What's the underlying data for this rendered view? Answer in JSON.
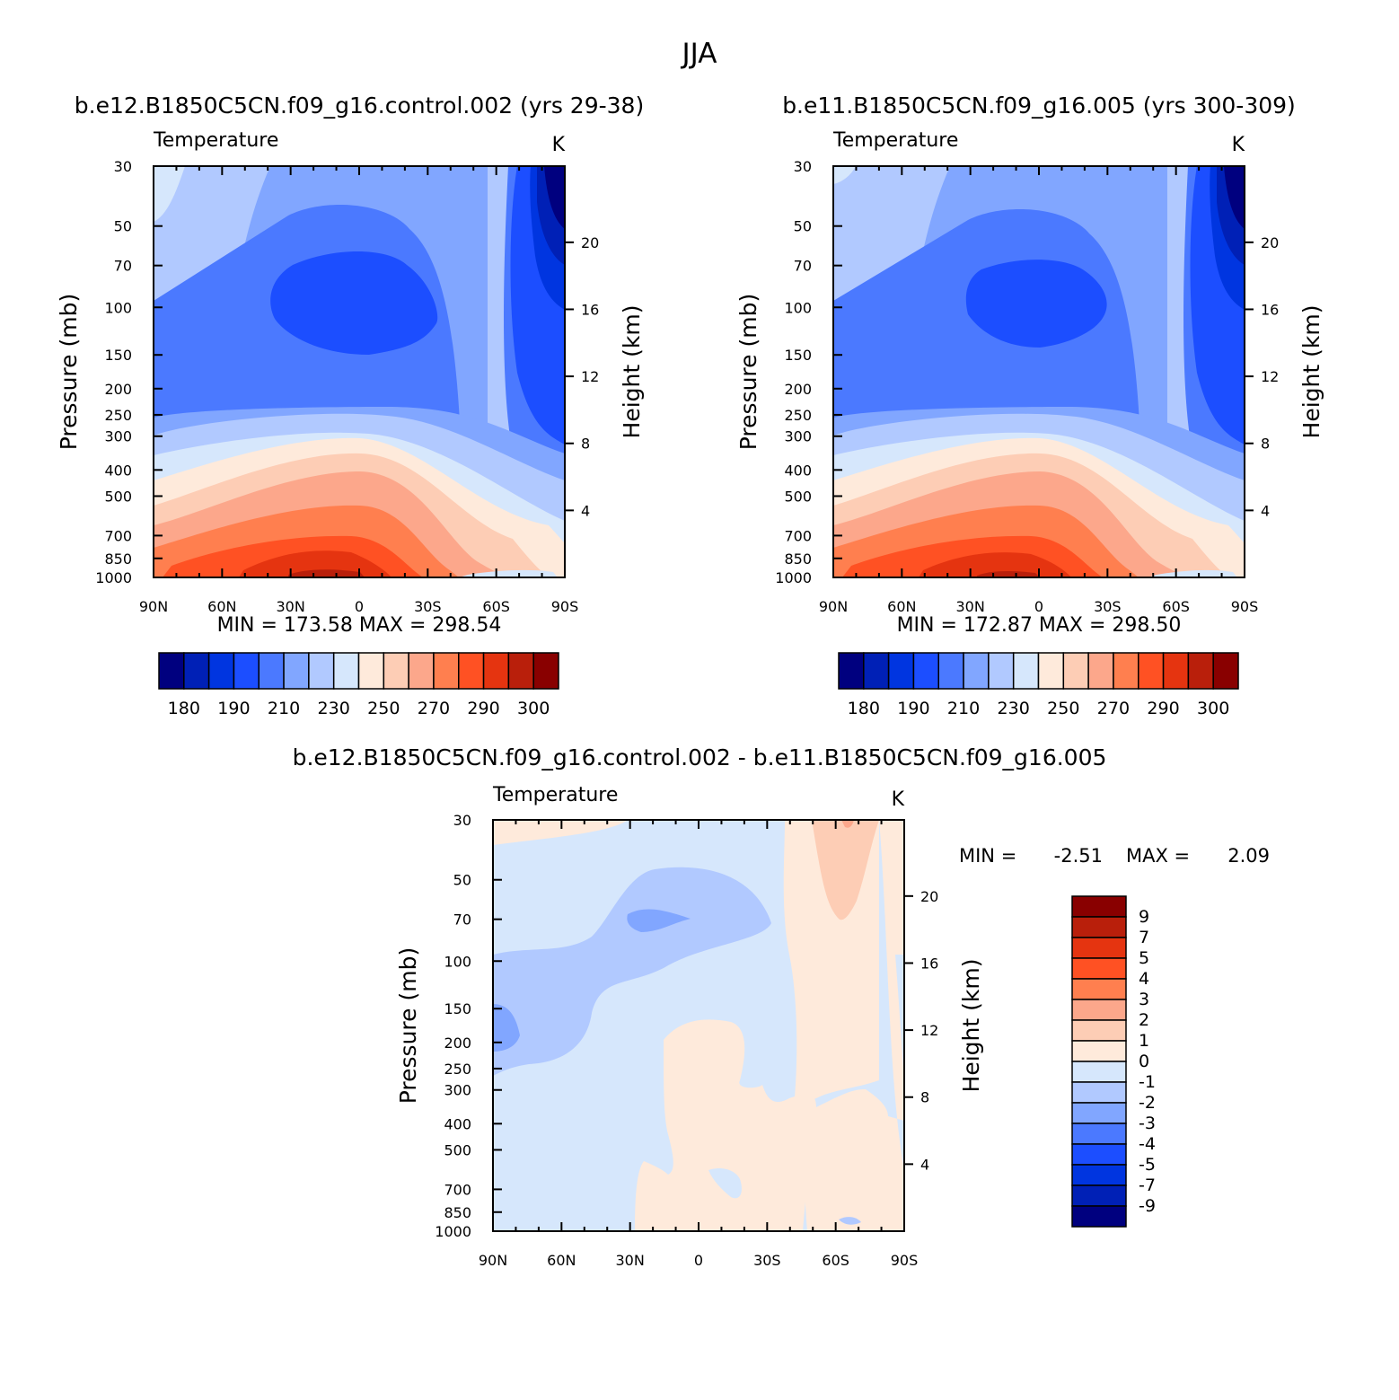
{
  "figure": {
    "title": "JJA",
    "panels": [
      {
        "id": "case1",
        "title": "b.e12.B1850C5CN.f09_g16.control.002 (yrs 29-38)",
        "field_label": "Temperature",
        "unit_label": "K",
        "min_text": "MIN =  173.58   MAX =  298.54"
      },
      {
        "id": "case2",
        "title": "b.e11.B1850C5CN.f09_g16.005 (yrs 300-309)",
        "field_label": "Temperature",
        "unit_label": "K",
        "min_text": "MIN =  172.87   MAX =  298.50"
      },
      {
        "id": "diff",
        "title": "b.e12.B1850C5CN.f09_g16.control.002 - b.e11.B1850C5CN.f09_g16.005",
        "field_label": "Temperature",
        "unit_label": "K",
        "min_label": "MIN =",
        "min_value": "-2.51",
        "max_label": "MAX =",
        "max_value": "2.09"
      }
    ]
  },
  "chart_data": [
    {
      "type": "heatmap",
      "title": "b.e12.B1850C5CN.f09_g16.control.002 (yrs 29-38)",
      "ylabel": "Pressure (mb)",
      "y2label": "Height (km)",
      "x_ticks": [
        "90N",
        "60N",
        "30N",
        "0",
        "30S",
        "60S",
        "90S"
      ],
      "y_ticks": [
        "30",
        "50",
        "70",
        "100",
        "150",
        "200",
        "250",
        "300",
        "400",
        "500",
        "700",
        "850",
        "1000"
      ],
      "y2_ticks": [
        "20",
        "16",
        "12",
        "8",
        "4"
      ],
      "colorbar_levels": [
        "180",
        "190",
        "210",
        "230",
        "250",
        "270",
        "290",
        "300"
      ],
      "min": 173.58,
      "max": 298.54
    },
    {
      "type": "heatmap",
      "title": "b.e11.B1850C5CN.f09_g16.005 (yrs 300-309)",
      "ylabel": "Pressure (mb)",
      "y2label": "Height (km)",
      "x_ticks": [
        "90N",
        "60N",
        "30N",
        "0",
        "30S",
        "60S",
        "90S"
      ],
      "y_ticks": [
        "30",
        "50",
        "70",
        "100",
        "150",
        "200",
        "250",
        "300",
        "400",
        "500",
        "700",
        "850",
        "1000"
      ],
      "y2_ticks": [
        "20",
        "16",
        "12",
        "8",
        "4"
      ],
      "colorbar_levels": [
        "180",
        "190",
        "210",
        "230",
        "250",
        "270",
        "290",
        "300"
      ],
      "min": 172.87,
      "max": 298.5
    },
    {
      "type": "heatmap",
      "title": "b.e12.B1850C5CN.f09_g16.control.002 - b.e11.B1850C5CN.f09_g16.005",
      "ylabel": "Pressure (mb)",
      "y2label": "Height (km)",
      "x_ticks": [
        "90N",
        "60N",
        "30N",
        "0",
        "30S",
        "60S",
        "90S"
      ],
      "y_ticks": [
        "30",
        "50",
        "70",
        "100",
        "150",
        "200",
        "250",
        "300",
        "400",
        "500",
        "700",
        "850",
        "1000"
      ],
      "y2_ticks": [
        "20",
        "16",
        "12",
        "8",
        "4"
      ],
      "colorbar_levels": [
        "9",
        "7",
        "5",
        "4",
        "3",
        "2",
        "1",
        "0",
        "-1",
        "-2",
        "-3",
        "-4",
        "-5",
        "-7",
        "-9"
      ],
      "min": -2.51,
      "max": 2.09
    }
  ],
  "palette": [
    "#00007f",
    "#0020b6",
    "#0035e0",
    "#1c4eff",
    "#4b79ff",
    "#81a6ff",
    "#b1c9ff",
    "#d6e7fc",
    "#feeadb",
    "#fdcdb5",
    "#fca78b",
    "#ff7f4f",
    "#ff5123",
    "#e53410",
    "#b91f0b",
    "#890000"
  ]
}
